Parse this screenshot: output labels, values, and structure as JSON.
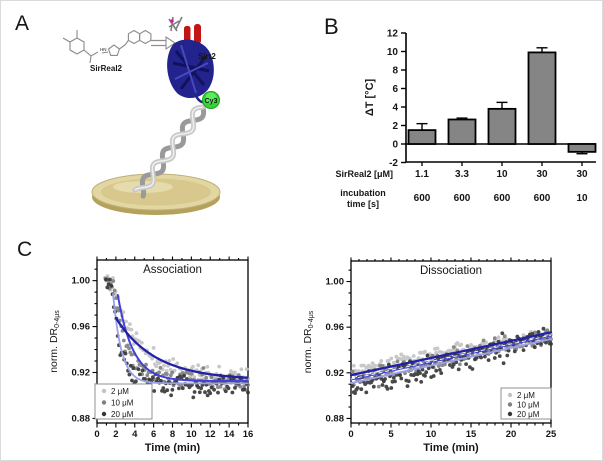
{
  "panels": {
    "a": {
      "label": "A",
      "molecule_label": "SirReal2",
      "protein_label": "Sirt2",
      "dye_label": "Cy3",
      "colors": {
        "protein_body": "#23238e",
        "protein_helix_red": "#c21515",
        "residue_sticks_gray": "#7d7d7d",
        "dye_green": "#35d435",
        "dna_gray": "#9a9a9a",
        "disc_top": "#e2d6a2",
        "disc_side": "#b3a15c"
      }
    },
    "b": {
      "label": "B"
    },
    "c": {
      "label": "C"
    }
  },
  "chart_data": [
    {
      "type": "bar",
      "panel": "B",
      "title": "",
      "xlabel": "",
      "ylabel": "ΔT [°C]",
      "ylim": [
        -2,
        12
      ],
      "yticks": [
        -2,
        0,
        2,
        4,
        6,
        8,
        10,
        12
      ],
      "grid": false,
      "categories": [
        "1.1",
        "3.3",
        "10",
        "30",
        "30"
      ],
      "values": [
        1.5,
        2.65,
        3.8,
        9.9,
        -0.85
      ],
      "errors": [
        0.7,
        0.15,
        0.7,
        0.5,
        0.2
      ],
      "bar_color": "#858585",
      "bar_edge_color": "#000000",
      "x_rows": [
        {
          "label": "SirReal2 [μM]",
          "values": [
            "1.1",
            "3.3",
            "10",
            "30",
            "30"
          ]
        },
        {
          "label": "incubation time [s]",
          "label_lines": [
            "incubation",
            "time [s]"
          ],
          "values": [
            "600",
            "600",
            "600",
            "600",
            "10"
          ]
        }
      ]
    },
    {
      "type": "scatter",
      "panel": "C-left",
      "title": "Association",
      "xlabel": "Time (min)",
      "ylabel": "norm. DR",
      "ylabel_sub": "0-4μs",
      "xlim": [
        0,
        16
      ],
      "xticks": [
        0,
        2,
        4,
        6,
        8,
        10,
        12,
        14,
        16
      ],
      "x_minor_step": 1,
      "ylim": [
        0.876,
        1.018
      ],
      "yticks": [
        0.88,
        0.92,
        0.96,
        1.0
      ],
      "y_minor_step": 0.01,
      "grid": false,
      "legend_position": "bottom-left",
      "series": [
        {
          "name": "2 μM",
          "point_color": "#c3c3c3",
          "fit_color": "#2121a8",
          "fit_width": 2.3,
          "fit": {
            "type": "exp_decay",
            "t0": 2.0,
            "plateau": 0.9135,
            "amplitude": 0.054,
            "tau": 4.2
          },
          "points": {
            "t_start": 0.85,
            "t_end": 16,
            "n": 110,
            "baseline": 1.0,
            "baseline_until": 1.55,
            "baseline_sd": 0.006,
            "plateau": 0.9175,
            "amplitude": 0.084,
            "tau": 2.6,
            "noise_sd": 0.0035
          }
        },
        {
          "name": "10 μM",
          "point_color": "#7f7f7f",
          "fit_color": "#4040d8",
          "fit_width": 2.0,
          "fit": {
            "type": "exp_decay",
            "t0": 2.2,
            "plateau": 0.9125,
            "amplitude": 0.075,
            "tau": 1.6
          },
          "points": {
            "t_start": 0.9,
            "t_end": 16,
            "n": 110,
            "baseline": 1.0,
            "baseline_until": 1.7,
            "baseline_sd": 0.006,
            "plateau": 0.913,
            "amplitude": 0.089,
            "tau": 1.35,
            "noise_sd": 0.004
          }
        },
        {
          "name": "20 μM",
          "point_color": "#353535",
          "fit_color": "#9aa0e8",
          "fit_width": 1.8,
          "fit": {
            "type": "exp_decay",
            "t0": 1.7,
            "plateau": 0.9105,
            "amplitude": 0.078,
            "tau": 0.9
          },
          "points": {
            "t_start": 0.95,
            "t_end": 16,
            "n": 110,
            "baseline": 1.0,
            "baseline_until": 1.5,
            "baseline_sd": 0.006,
            "plateau": 0.9095,
            "amplitude": 0.092,
            "tau": 0.95,
            "noise_sd": 0.0045
          }
        }
      ]
    },
    {
      "type": "scatter",
      "panel": "C-right",
      "title": "Dissociation",
      "xlabel": "Time (min)",
      "ylabel": "norm. DR",
      "ylabel_sub": "0-4μs",
      "xlim": [
        0,
        25
      ],
      "xticks": [
        0,
        5,
        10,
        15,
        20,
        25
      ],
      "x_minor_step": 1,
      "ylim": [
        0.876,
        1.018
      ],
      "yticks": [
        0.88,
        0.92,
        0.96,
        1.0
      ],
      "y_minor_step": 0.01,
      "grid": false,
      "legend_position": "bottom-right",
      "overlay_white_dash": true,
      "series": [
        {
          "name": "2 μM",
          "point_color": "#c3c3c3",
          "fit_color": "#2121a8",
          "fit_width": 2.3,
          "fit": {
            "type": "linear",
            "y0": 0.918,
            "y1": 0.9555
          },
          "points": {
            "t_start": 0.2,
            "t_end": 25,
            "n": 160,
            "intercept": 0.9225,
            "slope": 0.00124,
            "noise_sd": 0.003
          }
        },
        {
          "name": "10 μM",
          "point_color": "#7f7f7f",
          "fit_color": "#4646d4",
          "fit_width": 1.9,
          "fit": {
            "type": "linear",
            "y0": 0.914,
            "y1": 0.9525
          },
          "points": {
            "t_start": 0.2,
            "t_end": 25,
            "n": 160,
            "intercept": 0.9135,
            "slope": 0.00155,
            "noise_sd": 0.0035
          }
        },
        {
          "name": "20 μM",
          "point_color": "#353535",
          "fit_color": "#9aa0e8",
          "fit_width": 1.9,
          "fit": {
            "type": "linear",
            "y0": 0.911,
            "y1": 0.9495
          },
          "points": {
            "t_start": 0.2,
            "t_end": 25,
            "n": 160,
            "intercept": 0.906,
            "slope": 0.00185,
            "noise_sd": 0.005
          }
        }
      ]
    }
  ]
}
